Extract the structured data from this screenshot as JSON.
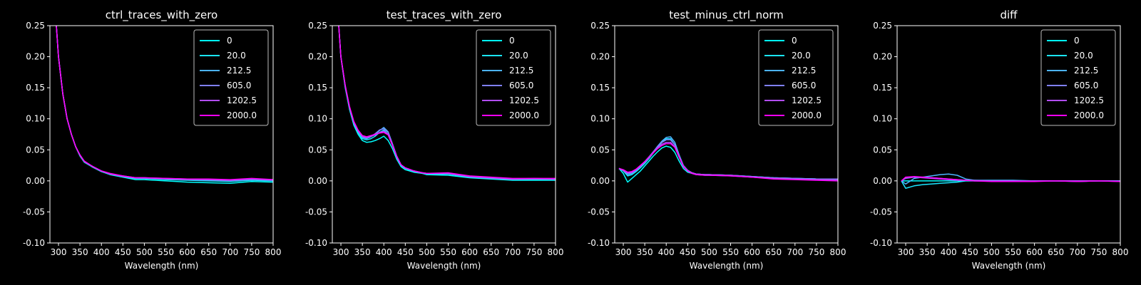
{
  "figure": {
    "background": "#000000",
    "foreground": "#ffffff"
  },
  "chart_data": [
    {
      "type": "line",
      "title": "ctrl_traces_with_zero",
      "xlabel": "Wavelength (nm)",
      "ylabel": "",
      "xlim": [
        280,
        800
      ],
      "ylim": [
        -0.1,
        0.25
      ],
      "xticks": [
        300,
        350,
        400,
        450,
        500,
        550,
        600,
        650,
        700,
        750,
        800
      ],
      "yticks": [
        -0.1,
        -0.05,
        0.0,
        0.05,
        0.1,
        0.15,
        0.2,
        0.25
      ],
      "legend": "top-right",
      "x": [
        295,
        300,
        310,
        320,
        330,
        340,
        350,
        360,
        380,
        400,
        420,
        450,
        480,
        500,
        550,
        600,
        650,
        700,
        750,
        800
      ],
      "series": [
        {
          "name": "0",
          "color": "#00ffff",
          "values": [
            0.25,
            0.2,
            0.14,
            0.1,
            0.075,
            0.055,
            0.04,
            0.03,
            0.022,
            0.015,
            0.01,
            0.006,
            0.002,
            0.002,
            0.0,
            -0.002,
            -0.003,
            -0.004,
            -0.001,
            -0.002
          ]
        },
        {
          "name": "20.0",
          "color": "#1ae5ff",
          "values": [
            0.25,
            0.2,
            0.14,
            0.1,
            0.075,
            0.055,
            0.041,
            0.031,
            0.022,
            0.015,
            0.011,
            0.007,
            0.004,
            0.004,
            0.002,
            0.001,
            0.0,
            -0.001,
            0.001,
            0.0
          ]
        },
        {
          "name": "212.5",
          "color": "#4cb3ff",
          "values": [
            0.25,
            0.2,
            0.14,
            0.1,
            0.075,
            0.055,
            0.041,
            0.031,
            0.023,
            0.016,
            0.011,
            0.007,
            0.004,
            0.004,
            0.003,
            0.002,
            0.001,
            0.0,
            0.002,
            0.001
          ]
        },
        {
          "name": "605.0",
          "color": "#7f80ff",
          "values": [
            0.25,
            0.2,
            0.14,
            0.1,
            0.075,
            0.055,
            0.041,
            0.031,
            0.023,
            0.016,
            0.011,
            0.007,
            0.005,
            0.005,
            0.003,
            0.002,
            0.002,
            0.001,
            0.003,
            0.001
          ]
        },
        {
          "name": "1202.5",
          "color": "#b24dff",
          "values": [
            0.25,
            0.2,
            0.14,
            0.1,
            0.075,
            0.055,
            0.042,
            0.031,
            0.023,
            0.016,
            0.011,
            0.008,
            0.005,
            0.005,
            0.004,
            0.003,
            0.002,
            0.001,
            0.003,
            0.002
          ]
        },
        {
          "name": "2000.0",
          "color": "#ff00ff",
          "values": [
            0.25,
            0.2,
            0.14,
            0.1,
            0.075,
            0.055,
            0.042,
            0.032,
            0.023,
            0.016,
            0.012,
            0.008,
            0.005,
            0.005,
            0.004,
            0.003,
            0.003,
            0.002,
            0.004,
            0.002
          ]
        }
      ]
    },
    {
      "type": "line",
      "title": "test_traces_with_zero",
      "xlabel": "Wavelength (nm)",
      "ylabel": "",
      "xlim": [
        280,
        800
      ],
      "ylim": [
        -0.1,
        0.25
      ],
      "xticks": [
        300,
        350,
        400,
        450,
        500,
        550,
        600,
        650,
        700,
        750,
        800
      ],
      "yticks": [
        -0.1,
        -0.05,
        0.0,
        0.05,
        0.1,
        0.15,
        0.2,
        0.25
      ],
      "legend": "top-right",
      "x": [
        295,
        300,
        310,
        320,
        330,
        340,
        350,
        360,
        370,
        380,
        390,
        400,
        410,
        420,
        430,
        440,
        450,
        470,
        490,
        500,
        550,
        600,
        650,
        700,
        750,
        800
      ],
      "series": [
        {
          "name": "0",
          "color": "#00ffff",
          "values": [
            0.25,
            0.2,
            0.15,
            0.115,
            0.09,
            0.075,
            0.065,
            0.062,
            0.063,
            0.065,
            0.068,
            0.072,
            0.065,
            0.052,
            0.035,
            0.023,
            0.018,
            0.014,
            0.012,
            0.01,
            0.009,
            0.005,
            0.003,
            0.001,
            0.001,
            0.001
          ]
        },
        {
          "name": "20.0",
          "color": "#1ae5ff",
          "values": [
            0.25,
            0.2,
            0.152,
            0.117,
            0.092,
            0.078,
            0.068,
            0.066,
            0.068,
            0.072,
            0.078,
            0.082,
            0.075,
            0.058,
            0.038,
            0.025,
            0.02,
            0.015,
            0.012,
            0.011,
            0.011,
            0.006,
            0.004,
            0.002,
            0.002,
            0.002
          ]
        },
        {
          "name": "212.5",
          "color": "#4cb3ff",
          "values": [
            0.25,
            0.2,
            0.152,
            0.118,
            0.093,
            0.079,
            0.07,
            0.068,
            0.071,
            0.075,
            0.081,
            0.086,
            0.079,
            0.06,
            0.04,
            0.026,
            0.021,
            0.016,
            0.013,
            0.012,
            0.012,
            0.006,
            0.004,
            0.002,
            0.003,
            0.002
          ]
        },
        {
          "name": "605.0",
          "color": "#7f80ff",
          "values": [
            0.25,
            0.2,
            0.153,
            0.118,
            0.094,
            0.08,
            0.071,
            0.069,
            0.072,
            0.076,
            0.082,
            0.084,
            0.078,
            0.059,
            0.04,
            0.026,
            0.021,
            0.016,
            0.013,
            0.012,
            0.012,
            0.007,
            0.005,
            0.003,
            0.003,
            0.003
          ]
        },
        {
          "name": "1202.5",
          "color": "#b24dff",
          "values": [
            0.25,
            0.2,
            0.153,
            0.119,
            0.095,
            0.081,
            0.072,
            0.07,
            0.072,
            0.074,
            0.078,
            0.08,
            0.075,
            0.058,
            0.039,
            0.026,
            0.021,
            0.016,
            0.013,
            0.012,
            0.012,
            0.007,
            0.005,
            0.003,
            0.004,
            0.003
          ]
        },
        {
          "name": "2000.0",
          "color": "#ff00ff",
          "values": [
            0.25,
            0.2,
            0.154,
            0.12,
            0.096,
            0.082,
            0.073,
            0.071,
            0.073,
            0.075,
            0.077,
            0.078,
            0.074,
            0.057,
            0.039,
            0.026,
            0.021,
            0.016,
            0.013,
            0.012,
            0.013,
            0.008,
            0.006,
            0.004,
            0.004,
            0.004
          ]
        }
      ]
    },
    {
      "type": "line",
      "title": "test_minus_ctrl_norm",
      "xlabel": "Wavelength (nm)",
      "ylabel": "",
      "xlim": [
        280,
        800
      ],
      "ylim": [
        -0.1,
        0.25
      ],
      "xticks": [
        300,
        350,
        400,
        450,
        500,
        550,
        600,
        650,
        700,
        750,
        800
      ],
      "yticks": [
        -0.1,
        -0.05,
        0.0,
        0.05,
        0.1,
        0.15,
        0.2,
        0.25
      ],
      "legend": "top-right",
      "x": [
        290,
        300,
        310,
        320,
        330,
        340,
        350,
        360,
        370,
        380,
        390,
        400,
        410,
        420,
        430,
        440,
        450,
        460,
        470,
        490,
        500,
        550,
        600,
        650,
        700,
        750,
        800
      ],
      "series": [
        {
          "name": "0",
          "color": "#00ffff",
          "values": [
            0.02,
            0.012,
            -0.002,
            0.004,
            0.01,
            0.016,
            0.024,
            0.032,
            0.04,
            0.047,
            0.053,
            0.056,
            0.054,
            0.046,
            0.032,
            0.02,
            0.014,
            0.012,
            0.01,
            0.009,
            0.009,
            0.008,
            0.006,
            0.004,
            0.003,
            0.002,
            0.002
          ]
        },
        {
          "name": "20.0",
          "color": "#1ae5ff",
          "values": [
            0.02,
            0.016,
            0.008,
            0.01,
            0.015,
            0.021,
            0.028,
            0.036,
            0.045,
            0.054,
            0.062,
            0.068,
            0.068,
            0.058,
            0.04,
            0.024,
            0.016,
            0.013,
            0.011,
            0.01,
            0.01,
            0.009,
            0.007,
            0.005,
            0.004,
            0.003,
            0.003
          ]
        },
        {
          "name": "212.5",
          "color": "#4cb3ff",
          "values": [
            0.02,
            0.017,
            0.01,
            0.012,
            0.017,
            0.023,
            0.03,
            0.038,
            0.047,
            0.056,
            0.064,
            0.07,
            0.071,
            0.062,
            0.042,
            0.025,
            0.017,
            0.013,
            0.011,
            0.01,
            0.01,
            0.009,
            0.007,
            0.005,
            0.004,
            0.003,
            0.003
          ]
        },
        {
          "name": "605.0",
          "color": "#7f80ff",
          "values": [
            0.02,
            0.017,
            0.012,
            0.013,
            0.018,
            0.024,
            0.031,
            0.039,
            0.047,
            0.055,
            0.062,
            0.066,
            0.066,
            0.058,
            0.04,
            0.024,
            0.017,
            0.013,
            0.011,
            0.01,
            0.01,
            0.009,
            0.007,
            0.005,
            0.004,
            0.003,
            0.003
          ]
        },
        {
          "name": "1202.5",
          "color": "#b24dff",
          "values": [
            0.02,
            0.017,
            0.013,
            0.014,
            0.018,
            0.024,
            0.031,
            0.038,
            0.046,
            0.053,
            0.059,
            0.062,
            0.062,
            0.055,
            0.039,
            0.024,
            0.016,
            0.013,
            0.011,
            0.01,
            0.01,
            0.009,
            0.006,
            0.004,
            0.003,
            0.002,
            0.002
          ]
        },
        {
          "name": "2000.0",
          "color": "#ff00ff",
          "values": [
            0.02,
            0.018,
            0.014,
            0.015,
            0.019,
            0.025,
            0.031,
            0.038,
            0.045,
            0.052,
            0.057,
            0.06,
            0.06,
            0.054,
            0.038,
            0.023,
            0.016,
            0.012,
            0.01,
            0.009,
            0.009,
            0.008,
            0.006,
            0.003,
            0.002,
            0.001,
            0.0
          ]
        }
      ]
    },
    {
      "type": "line",
      "title": "diff",
      "xlabel": "Wavelength (nm)",
      "ylabel": "",
      "xlim": [
        280,
        800
      ],
      "ylim": [
        -0.1,
        0.25
      ],
      "xticks": [
        300,
        350,
        400,
        450,
        500,
        550,
        600,
        650,
        700,
        750,
        800
      ],
      "yticks": [
        -0.1,
        -0.05,
        0.0,
        0.05,
        0.1,
        0.15,
        0.2,
        0.25
      ],
      "legend": "top-right",
      "x": [
        290,
        300,
        320,
        340,
        360,
        380,
        400,
        420,
        440,
        460,
        500,
        550,
        600,
        650,
        700,
        750,
        800
      ],
      "series": [
        {
          "name": "0",
          "color": "#00ffff",
          "values": [
            0.0,
            0.0,
            0.0,
            0.0,
            0.0,
            0.0,
            0.0,
            0.0,
            0.0,
            0.0,
            0.0,
            0.0,
            0.0,
            0.0,
            0.0,
            0.0,
            0.0
          ]
        },
        {
          "name": "20.0",
          "color": "#1ae5ff",
          "values": [
            0.0,
            -0.012,
            -0.008,
            -0.006,
            -0.005,
            -0.004,
            -0.003,
            -0.002,
            0.0,
            0.0,
            0.0,
            0.0,
            0.0,
            0.0,
            -0.001,
            0.0,
            0.0
          ]
        },
        {
          "name": "212.5",
          "color": "#4cb3ff",
          "values": [
            0.0,
            -0.005,
            0.004,
            0.006,
            0.008,
            0.01,
            0.011,
            0.009,
            0.003,
            0.001,
            0.001,
            0.001,
            0.0,
            0.0,
            0.0,
            0.0,
            0.0
          ]
        },
        {
          "name": "605.0",
          "color": "#7f80ff",
          "values": [
            0.0,
            0.004,
            0.006,
            0.006,
            0.005,
            0.004,
            0.003,
            0.002,
            0.001,
            0.001,
            0.0,
            0.0,
            0.0,
            0.0,
            0.0,
            0.0,
            0.0
          ]
        },
        {
          "name": "1202.5",
          "color": "#b24dff",
          "values": [
            0.0,
            0.005,
            0.006,
            0.005,
            0.004,
            0.003,
            0.002,
            0.001,
            0.001,
            0.0,
            0.0,
            0.0,
            0.0,
            0.0,
            0.0,
            0.0,
            -0.001
          ]
        },
        {
          "name": "2000.0",
          "color": "#ff00ff",
          "values": [
            0.0,
            0.006,
            0.007,
            0.006,
            0.005,
            0.004,
            0.003,
            0.002,
            0.001,
            0.0,
            -0.001,
            -0.001,
            -0.001,
            0.0,
            -0.001,
            0.0,
            -0.001
          ]
        }
      ]
    }
  ]
}
